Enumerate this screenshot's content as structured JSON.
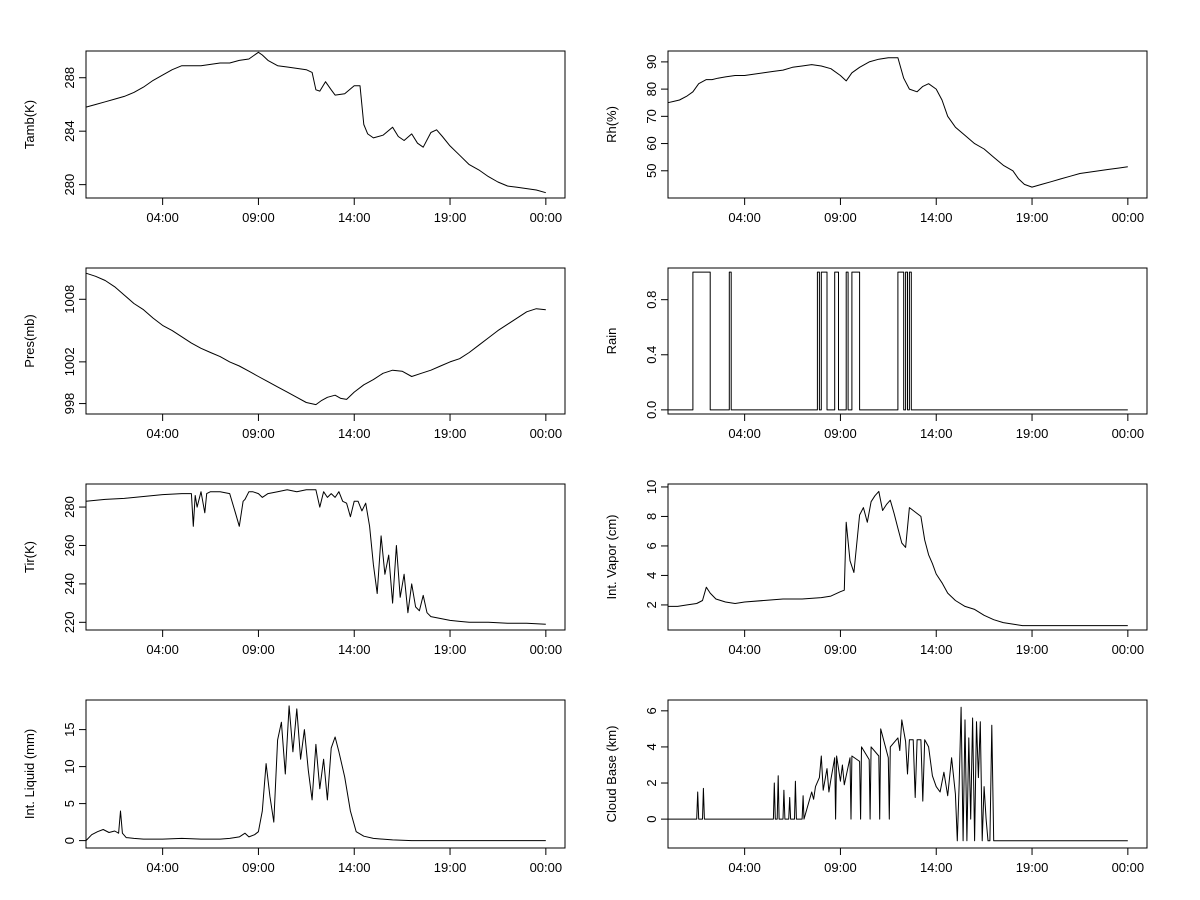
{
  "figure": {
    "colors": {
      "background": "#ffffff",
      "axis": "#000000",
      "line": "#000000"
    }
  },
  "chart_data": [
    {
      "type": "line",
      "title": "",
      "ylabel": "Tamb(K)",
      "xlabel": "",
      "x_tick_labels": [
        "04:00",
        "09:00",
        "14:00",
        "19:00",
        "00:00"
      ],
      "x_ticks_hours": [
        4,
        9,
        14,
        19,
        24
      ],
      "xlim_hours": [
        0,
        25
      ],
      "ylim": [
        279,
        290
      ],
      "y_ticks": [
        280,
        284,
        288
      ],
      "grid": false,
      "x": [
        0,
        0.5,
        1,
        1.5,
        2,
        2.5,
        3,
        3.5,
        4,
        4.5,
        5,
        5.5,
        6,
        6.5,
        7,
        7.5,
        8,
        8.5,
        9,
        9.2,
        9.5,
        10,
        10.5,
        11,
        11.5,
        11.8,
        12,
        12.2,
        12.5,
        12.8,
        13,
        13.5,
        14,
        14.3,
        14.5,
        14.7,
        15,
        15.5,
        16,
        16.3,
        16.6,
        17,
        17.3,
        17.6,
        18,
        18.3,
        18.6,
        19,
        19.5,
        20,
        20.5,
        21,
        21.5,
        22,
        22.5,
        23,
        23.5,
        24
      ],
      "values": [
        285.8,
        286,
        286.2,
        286.4,
        286.6,
        286.9,
        287.3,
        287.8,
        288.2,
        288.6,
        288.9,
        288.9,
        288.9,
        289.0,
        289.1,
        289.1,
        289.3,
        289.4,
        289.9,
        289.7,
        289.3,
        288.9,
        288.8,
        288.7,
        288.6,
        288.4,
        287.1,
        287.0,
        287.7,
        287.1,
        286.7,
        286.8,
        287.4,
        287.4,
        284.5,
        283.8,
        283.5,
        283.7,
        284.3,
        283.6,
        283.3,
        283.8,
        283.1,
        282.8,
        283.9,
        284.1,
        283.6,
        282.9,
        282.2,
        281.5,
        281.1,
        280.6,
        280.2,
        279.9,
        279.8,
        279.7,
        279.6,
        279.4
      ]
    },
    {
      "type": "line",
      "title": "",
      "ylabel": "Rh(%)",
      "xlabel": "",
      "x_tick_labels": [
        "04:00",
        "09:00",
        "14:00",
        "19:00",
        "00:00"
      ],
      "x_ticks_hours": [
        4,
        9,
        14,
        19,
        24
      ],
      "xlim_hours": [
        0,
        25
      ],
      "ylim": [
        40,
        94
      ],
      "y_ticks": [
        50,
        60,
        70,
        80,
        90
      ],
      "grid": false,
      "x": [
        0,
        0.3,
        0.6,
        1,
        1.3,
        1.6,
        2,
        2.3,
        2.6,
        3,
        3.5,
        4,
        4.5,
        5,
        5.5,
        6,
        6.5,
        7,
        7.5,
        8,
        8.5,
        9,
        9.3,
        9.6,
        10,
        10.5,
        11,
        11.5,
        12,
        12.3,
        12.6,
        13,
        13.3,
        13.6,
        14,
        14.3,
        14.6,
        15,
        15.5,
        16,
        16.5,
        17,
        17.5,
        18,
        18.3,
        18.6,
        19,
        19.5,
        20,
        20.5,
        21,
        21.5,
        22,
        22.5,
        23,
        23.5,
        24
      ],
      "values": [
        75,
        75.5,
        76,
        77.5,
        79,
        82,
        83.5,
        83.5,
        84,
        84.5,
        85,
        85,
        85.5,
        86,
        86.5,
        87,
        88,
        88.5,
        89,
        88.5,
        87.5,
        85,
        83,
        86,
        88,
        90,
        91,
        91.5,
        91.5,
        84,
        80,
        79,
        81,
        82,
        80,
        76,
        70,
        66,
        63,
        60,
        58,
        55,
        52,
        50,
        47,
        45,
        44,
        45,
        46,
        47,
        48,
        49,
        49.5,
        50,
        50.5,
        51,
        51.5
      ]
    },
    {
      "type": "line",
      "title": "",
      "ylabel": "Pres(mb)",
      "xlabel": "",
      "x_tick_labels": [
        "04:00",
        "09:00",
        "14:00",
        "19:00",
        "00:00"
      ],
      "x_ticks_hours": [
        4,
        9,
        14,
        19,
        24
      ],
      "xlim_hours": [
        0,
        25
      ],
      "ylim": [
        997,
        1011
      ],
      "y_ticks": [
        998,
        1002,
        1008
      ],
      "grid": false,
      "x": [
        0,
        0.5,
        1,
        1.5,
        2,
        2.5,
        3,
        3.5,
        4,
        4.5,
        5,
        5.5,
        6,
        6.5,
        7,
        7.5,
        8,
        8.5,
        9,
        9.5,
        10,
        10.5,
        11,
        11.5,
        12,
        12.3,
        12.6,
        13,
        13.3,
        13.6,
        14,
        14.5,
        15,
        15.5,
        16,
        16.5,
        17,
        17.5,
        18,
        18.5,
        19,
        19.5,
        20,
        20.5,
        21,
        21.5,
        22,
        22.5,
        23,
        23.5,
        24
      ],
      "values": [
        1010.5,
        1010.2,
        1009.8,
        1009.2,
        1008.4,
        1007.6,
        1007,
        1006.2,
        1005.5,
        1005,
        1004.4,
        1003.8,
        1003.3,
        1002.9,
        1002.5,
        1002,
        1001.6,
        1001.1,
        1000.6,
        1000.1,
        999.6,
        999.1,
        998.6,
        998.1,
        997.9,
        998.3,
        998.6,
        998.8,
        998.5,
        998.4,
        999.1,
        999.8,
        1000.3,
        1000.9,
        1001.2,
        1001.1,
        1000.6,
        1000.9,
        1001.2,
        1001.6,
        1002,
        1002.3,
        1002.9,
        1003.6,
        1004.3,
        1005,
        1005.6,
        1006.2,
        1006.8,
        1007.1,
        1007
      ]
    },
    {
      "type": "line",
      "title": "",
      "ylabel": "Rain",
      "xlabel": "",
      "x_tick_labels": [
        "04:00",
        "09:00",
        "14:00",
        "19:00",
        "00:00"
      ],
      "x_ticks_hours": [
        4,
        9,
        14,
        19,
        24
      ],
      "xlim_hours": [
        0,
        25
      ],
      "ylim": [
        -0.03,
        1.03
      ],
      "y_ticks": [
        0.0,
        0.4,
        0.8
      ],
      "y_tick_labels": [
        "0.0",
        "0.4",
        "0.8"
      ],
      "grid": false,
      "x": [
        0,
        1.3,
        1.3,
        2.2,
        2.2,
        3.2,
        3.2,
        3.3,
        3.3,
        7.8,
        7.8,
        7.9,
        7.9,
        8.0,
        8.0,
        8.3,
        8.3,
        8.7,
        8.7,
        8.9,
        8.9,
        9.3,
        9.3,
        9.4,
        9.4,
        9.6,
        9.6,
        10.0,
        10.0,
        12.0,
        12.0,
        12.3,
        12.3,
        12.4,
        12.4,
        12.5,
        12.5,
        12.6,
        12.6,
        12.7,
        12.7,
        24
      ],
      "values": [
        0,
        0,
        1,
        1,
        0,
        0,
        1,
        1,
        0,
        0,
        1,
        1,
        0,
        0,
        1,
        1,
        0,
        0,
        1,
        1,
        0,
        0,
        1,
        1,
        0,
        0,
        1,
        1,
        0,
        0,
        1,
        1,
        0,
        0,
        1,
        1,
        0,
        0,
        1,
        1,
        0,
        0
      ]
    },
    {
      "type": "line",
      "title": "",
      "ylabel": "Tir(K)",
      "xlabel": "",
      "x_tick_labels": [
        "04:00",
        "09:00",
        "14:00",
        "19:00",
        "00:00"
      ],
      "x_ticks_hours": [
        4,
        9,
        14,
        19,
        24
      ],
      "xlim_hours": [
        0,
        25
      ],
      "ylim": [
        216,
        292
      ],
      "y_ticks": [
        220,
        240,
        260,
        280
      ],
      "grid": false,
      "x": [
        0,
        1,
        2,
        3,
        4,
        5,
        5.5,
        5.6,
        5.7,
        5.8,
        6,
        6.2,
        6.3,
        6.5,
        7,
        7.5,
        7.8,
        8,
        8.2,
        8.3,
        8.5,
        8.7,
        9,
        9.2,
        9.5,
        10,
        10.5,
        11,
        11.5,
        12,
        12.2,
        12.4,
        12.6,
        12.8,
        13,
        13.2,
        13.4,
        13.6,
        13.8,
        14,
        14.2,
        14.4,
        14.6,
        14.8,
        15,
        15.2,
        15.4,
        15.6,
        15.8,
        16,
        16.2,
        16.4,
        16.6,
        16.8,
        17,
        17.2,
        17.4,
        17.6,
        17.8,
        18,
        18.5,
        19,
        19.5,
        20,
        21,
        22,
        23,
        24
      ],
      "values": [
        283,
        284,
        284.5,
        285.5,
        286.5,
        287,
        287,
        270,
        286,
        280,
        288,
        277,
        287,
        288,
        288,
        287,
        277,
        270,
        283,
        284,
        288,
        288,
        287,
        285,
        287,
        288,
        289,
        288,
        289,
        289,
        280,
        288,
        285,
        287,
        285,
        288,
        283,
        282,
        275,
        283,
        283,
        278,
        282,
        270,
        250,
        235,
        265,
        245,
        255,
        230,
        260,
        233,
        245,
        225,
        240,
        228,
        226,
        234,
        225,
        223,
        222,
        221,
        220.5,
        220,
        220,
        219.5,
        219.5,
        219
      ]
    },
    {
      "type": "line",
      "title": "",
      "ylabel": "Int. Vapor (cm)",
      "xlabel": "",
      "x_tick_labels": [
        "04:00",
        "09:00",
        "14:00",
        "19:00",
        "00:00"
      ],
      "x_ticks_hours": [
        4,
        9,
        14,
        19,
        24
      ],
      "xlim_hours": [
        0,
        25
      ],
      "ylim": [
        0.3,
        10.2
      ],
      "y_ticks": [
        2,
        4,
        6,
        8,
        10
      ],
      "grid": false,
      "x": [
        0,
        0.5,
        1,
        1.5,
        1.8,
        2,
        2.2,
        2.5,
        3,
        3.5,
        4,
        5,
        6,
        7,
        8,
        8.5,
        9,
        9.2,
        9.3,
        9.5,
        9.7,
        10,
        10.2,
        10.4,
        10.6,
        10.8,
        11,
        11.2,
        11.4,
        11.6,
        11.8,
        12,
        12.2,
        12.4,
        12.6,
        12.8,
        13,
        13.2,
        13.4,
        13.6,
        13.8,
        14,
        14.3,
        14.6,
        15,
        15.5,
        16,
        16.5,
        17,
        17.5,
        18,
        18.5,
        19,
        20,
        21,
        22,
        23,
        24
      ],
      "values": [
        1.9,
        1.9,
        2.0,
        2.1,
        2.3,
        3.2,
        2.8,
        2.4,
        2.2,
        2.1,
        2.2,
        2.3,
        2.4,
        2.4,
        2.5,
        2.6,
        2.9,
        3.0,
        7.6,
        5.0,
        4.2,
        8.1,
        8.6,
        7.6,
        9.0,
        9.4,
        9.7,
        8.4,
        8.8,
        9.1,
        8.2,
        7.2,
        6.2,
        5.9,
        8.6,
        8.4,
        8.2,
        8.0,
        6.4,
        5.4,
        4.8,
        4.1,
        3.5,
        2.8,
        2.3,
        1.9,
        1.7,
        1.3,
        1.0,
        0.8,
        0.7,
        0.6,
        0.6,
        0.6,
        0.6,
        0.6,
        0.6,
        0.6
      ]
    },
    {
      "type": "line",
      "title": "",
      "ylabel": "Int. Liquid (mm)",
      "xlabel": "",
      "x_tick_labels": [
        "04:00",
        "09:00",
        "14:00",
        "19:00",
        "00:00"
      ],
      "x_ticks_hours": [
        4,
        9,
        14,
        19,
        24
      ],
      "xlim_hours": [
        0,
        25
      ],
      "ylim": [
        -1,
        19
      ],
      "y_ticks": [
        0,
        5,
        10,
        15
      ],
      "grid": false,
      "x": [
        0,
        0.3,
        0.6,
        0.9,
        1.2,
        1.5,
        1.7,
        1.8,
        1.9,
        2.1,
        2.5,
        3,
        4,
        5,
        6,
        7,
        7.5,
        8,
        8.3,
        8.5,
        8.8,
        9,
        9.2,
        9.4,
        9.6,
        9.8,
        10.0,
        10.2,
        10.4,
        10.6,
        10.8,
        11.0,
        11.2,
        11.4,
        11.6,
        11.8,
        12.0,
        12.2,
        12.4,
        12.6,
        12.8,
        13.0,
        13.2,
        13.5,
        13.8,
        14.1,
        14.5,
        15,
        16,
        17,
        18,
        19,
        20,
        21,
        22,
        23,
        24
      ],
      "values": [
        0,
        0.8,
        1.2,
        1.5,
        1.1,
        1.3,
        1.0,
        4.0,
        1.0,
        0.4,
        0.3,
        0.2,
        0.2,
        0.3,
        0.2,
        0.2,
        0.3,
        0.5,
        1.0,
        0.5,
        0.8,
        1.2,
        4,
        10.4,
        6,
        2.5,
        13.6,
        16,
        9,
        18.2,
        12,
        17.8,
        11,
        15,
        9.5,
        5.5,
        13,
        7,
        11,
        5.5,
        12.5,
        14,
        12,
        8.6,
        4,
        1.2,
        0.6,
        0.3,
        0.1,
        0,
        0,
        0,
        0,
        0,
        0,
        0,
        0
      ]
    },
    {
      "type": "line",
      "title": "",
      "ylabel": "Cloud Base (km)",
      "xlabel": "",
      "x_tick_labels": [
        "04:00",
        "09:00",
        "14:00",
        "19:00",
        "00:00"
      ],
      "x_ticks_hours": [
        4,
        9,
        14,
        19,
        24
      ],
      "xlim_hours": [
        0,
        25
      ],
      "ylim": [
        -1.6,
        6.6
      ],
      "y_ticks": [
        0,
        2,
        4,
        6
      ],
      "grid": false,
      "x": [
        0,
        1.5,
        1.55,
        1.6,
        1.8,
        1.85,
        1.9,
        2.5,
        3,
        4,
        5,
        5.5,
        5.55,
        5.6,
        5.7,
        5.75,
        5.8,
        6,
        6.05,
        6.1,
        6.3,
        6.35,
        6.4,
        6.6,
        6.65,
        6.7,
        7,
        7.05,
        7.1,
        7.5,
        7.6,
        7.7,
        7.9,
        8.0,
        8.1,
        8.3,
        8.4,
        8.5,
        8.7,
        8.75,
        8.8,
        9.0,
        9.1,
        9.2,
        9.5,
        9.55,
        9.6,
        10.0,
        10.05,
        10.1,
        10.5,
        10.55,
        10.6,
        11.0,
        11.05,
        11.1,
        11.5,
        11.55,
        11.6,
        12.0,
        12.1,
        12.2,
        12.4,
        12.5,
        12.6,
        12.8,
        12.9,
        13.0,
        13.2,
        13.3,
        13.4,
        13.6,
        13.8,
        14.0,
        14.2,
        14.4,
        14.6,
        14.8,
        15.0,
        15.1,
        15.2,
        15.3,
        15.4,
        15.5,
        15.6,
        15.7,
        15.8,
        15.9,
        16.0,
        16.1,
        16.2,
        16.3,
        16.4,
        16.5,
        16.6,
        16.7,
        16.8,
        16.9,
        17.0,
        17.1,
        17.2,
        17.3,
        17.4,
        17.5,
        17.6,
        17.7,
        17.75,
        24
      ],
      "values": [
        0,
        0,
        1.5,
        0,
        0,
        1.7,
        0,
        0,
        0,
        0,
        0,
        0,
        2,
        0,
        0,
        2.4,
        0,
        0,
        1.6,
        0,
        0,
        1.2,
        0,
        0,
        2.1,
        0,
        0,
        1.3,
        0,
        1.5,
        1.1,
        1.8,
        2.3,
        3.5,
        1.6,
        2.8,
        1.5,
        2.2,
        3.4,
        0,
        3.5,
        2.1,
        3.0,
        1.9,
        3.4,
        0,
        3.5,
        3.2,
        0,
        4.0,
        3.3,
        0,
        4.0,
        3.5,
        0,
        5.0,
        3.4,
        0,
        4.0,
        4.5,
        3.8,
        5.5,
        4.3,
        2.5,
        4.4,
        4.4,
        1.2,
        4.4,
        4.4,
        1.0,
        4.4,
        4.0,
        2.4,
        1.8,
        1.5,
        2.6,
        1.3,
        3.4,
        1.4,
        -1.2,
        2.0,
        6.2,
        -1.2,
        5.5,
        -1.2,
        4.5,
        0,
        5.6,
        -1.2,
        5.4,
        2.3,
        5.4,
        -1.2,
        1.8,
        0,
        -1.2,
        -1.2,
        5.2,
        -1.2,
        -1.2,
        -1.2,
        -1.2,
        -1.2,
        -1.2,
        -1.2,
        -1.2,
        -1.2,
        -1.2
      ]
    }
  ]
}
